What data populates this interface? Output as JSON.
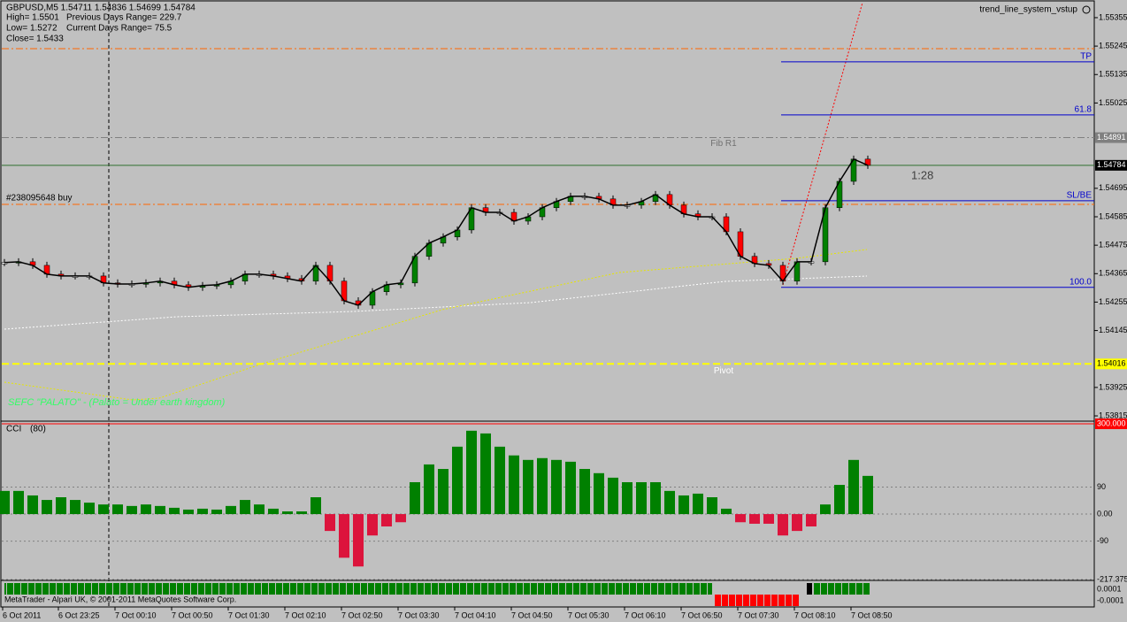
{
  "header": {
    "symbol_line": "GBPUSD,M5  1.54711 1.54836 1.54699 1.54784",
    "high": "High= 1.5501",
    "prev_range": "Previous Days Range= 229.7",
    "low": "Low= 1.5272",
    "cur_range": "Current Days Range= 75.5",
    "close": "Close= 1.5433",
    "indicator_name": "trend_line_system_vstup",
    "ratio": "1:28",
    "watermark": "SEFC \"PALATO\" - (Palato = Under earth kingdom)"
  },
  "main": {
    "ylim": [
      1.53798,
      1.55413
    ],
    "yticks": [
      1.55355,
      1.55245,
      1.55135,
      1.55025,
      1.54695,
      1.54585,
      1.54475,
      1.54365,
      1.54255,
      1.54145,
      1.53925,
      1.53815
    ],
    "closes": [
      1.54408,
      1.54411,
      1.54397,
      1.54363,
      1.54356,
      1.54356,
      1.54356,
      1.54329,
      1.54325,
      1.54325,
      1.54329,
      1.54336,
      1.54322,
      1.54312,
      1.54319,
      1.54322,
      1.54336,
      1.54363,
      1.54363,
      1.54356,
      1.54346,
      1.54336,
      1.54397,
      1.54336,
      1.5426,
      1.54243,
      1.54295,
      1.54322,
      1.54329,
      1.54432,
      1.54483,
      1.54507,
      1.54534,
      1.5462,
      1.54602,
      1.54602,
      1.54568,
      1.54585,
      1.5462,
      1.54644,
      1.54664,
      1.54664,
      1.54654,
      1.5463,
      1.5463,
      1.54644,
      1.54671,
      1.5463,
      1.54596,
      1.54585,
      1.54585,
      1.54527,
      1.54432,
      1.54404,
      1.54397,
      1.54336,
      1.54411,
      1.54411,
      1.5462,
      1.54722,
      1.54808,
      1.54784
    ],
    "levels": [
      {
        "label": "TP",
        "value": 1.55184,
        "color": "#0000cc",
        "style": "solid",
        "from": "trade",
        "align": "right"
      },
      {
        "label": "61.8",
        "value": 1.54979,
        "color": "#0000cc",
        "style": "solid",
        "from": "trade",
        "align": "right"
      },
      {
        "label": "SL/BE",
        "value": 1.54647,
        "color": "#0000cc",
        "style": "solid",
        "from": "trade",
        "align": "right"
      },
      {
        "label": "100.0",
        "value": 1.54312,
        "color": "#0000cc",
        "style": "solid",
        "from": "trade",
        "align": "right"
      },
      {
        "label": "Fib R1",
        "value": 1.54891,
        "color": "#808080",
        "style": "dashdot",
        "from": "left",
        "align": "center-above",
        "box": true
      },
      {
        "label": "Pivot",
        "value": 1.54016,
        "color": "#ffff00",
        "style": "dash",
        "from": "left",
        "align": "center-below",
        "box": true
      },
      {
        "label": "#238095648 buy",
        "value": 1.54633,
        "color": "#ff6600",
        "style": "dashdot",
        "from": "left",
        "align": "left"
      },
      {
        "value": 1.55235,
        "color": "#ff6600",
        "style": "dashdot",
        "from": "left"
      },
      {
        "value": 1.54784,
        "color": "#2f6f2f",
        "style": "solid",
        "from": "left",
        "box": true
      }
    ]
  },
  "cci": {
    "title": "CCI",
    "period": "(80)",
    "ylim": [
      -217.375,
      300
    ],
    "yticks": [
      {
        "value": 300,
        "label": "300.000"
      },
      90,
      {
        "value": 0,
        "label": "0.00"
      },
      -90,
      -217.375
    ],
    "values": [
      77,
      77,
      62,
      47,
      56,
      47,
      38,
      32,
      32,
      27,
      32,
      27,
      21,
      15,
      18,
      15,
      27,
      47,
      32,
      18,
      9,
      9,
      56,
      -56,
      -145,
      -174,
      -71,
      -41,
      -27,
      106,
      165,
      150,
      224,
      277,
      268,
      224,
      195,
      180,
      186,
      180,
      174,
      150,
      136,
      121,
      106,
      106,
      106,
      77,
      62,
      68,
      56,
      18,
      -27,
      -32,
      -32,
      -71,
      -56,
      -41,
      32,
      97,
      180,
      127
    ]
  },
  "bullbear": {
    "yticks": [
      {
        "value": 0.0001,
        "label": "0.0001"
      },
      {
        "value": -0.0001,
        "label": "-0.0001"
      }
    ]
  },
  "time_labels": [
    "6 Oct 2011",
    "6 Oct 23:25",
    "7 Oct 00:10",
    "7 Oct 00:50",
    "7 Oct 01:30",
    "7 Oct 02:10",
    "7 Oct 02:50",
    "7 Oct 03:30",
    "7 Oct 04:10",
    "7 Oct 04:50",
    "7 Oct 05:30",
    "7 Oct 06:10",
    "7 Oct 06:50",
    "7 Oct 07:30",
    "7 Oct 08:10",
    "7 Oct 08:50"
  ],
  "footer": "MetaTrader - Alpari UK, © 2001-2011 MetaQuotes Software Corp."
}
